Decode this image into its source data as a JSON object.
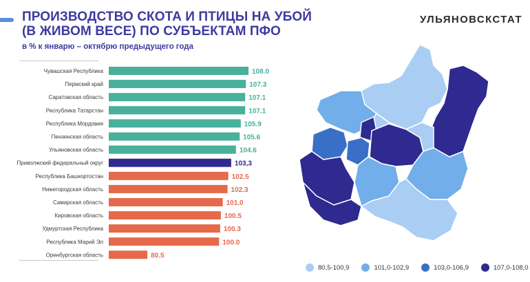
{
  "header": {
    "title_line1": "ПРОИЗВОДСТВО СКОТА И ПТИЦЫ НА УБОЙ",
    "title_line2": "(В ЖИВОМ ВЕСЕ) ПО СУБЪЕКТАМ ПФО",
    "subtitle": "в % к январю – октябрю предыдущего года",
    "brand": "УЛЬЯНОВСКСТАТ"
  },
  "colors": {
    "above": "#48b09b",
    "district": "#2f2a8f",
    "below": "#e5694a",
    "title": "#3d3a9e"
  },
  "chart_data": {
    "type": "bar",
    "orientation": "horizontal",
    "categories": [
      "Чувашская Республика",
      "Пермский край",
      "Саратовская область",
      "Республика Татарстан",
      "Республика Мордовия",
      "Пензенская область",
      "Ульяновская область",
      "Приволжский федеральный округ",
      "Республика Башкортостан",
      "Нижегородская область",
      "Самарская область",
      "Кировская область",
      "Удмуртская Республика",
      "Республика Марий Эл",
      "Оренбургская область"
    ],
    "values": [
      108.0,
      107.3,
      107.1,
      107.1,
      105.9,
      105.6,
      104.6,
      103.3,
      102.5,
      102.3,
      101.0,
      100.5,
      100.3,
      100.0,
      80.5
    ],
    "value_labels": [
      "108.0",
      "107.3",
      "107.1",
      "107.1",
      "105.9",
      "105.6",
      "104.6",
      "103,3",
      "102.5",
      "102.3",
      "101.0",
      "100.5",
      "100.3",
      "100.0",
      "80.5"
    ],
    "bar_groups": [
      "above",
      "above",
      "above",
      "above",
      "above",
      "above",
      "above",
      "district",
      "below",
      "below",
      "below",
      "below",
      "below",
      "below",
      "below"
    ],
    "xlim": [
      70,
      108
    ]
  },
  "map": {
    "legend": [
      {
        "label": "80,5-100,9",
        "color": "#a9cdf3"
      },
      {
        "label": "101,0-102,9",
        "color": "#72aee9"
      },
      {
        "label": "103,0-106,9",
        "color": "#3a6fc7"
      },
      {
        "label": "107,0-108,0",
        "color": "#2f2a8f"
      }
    ]
  }
}
